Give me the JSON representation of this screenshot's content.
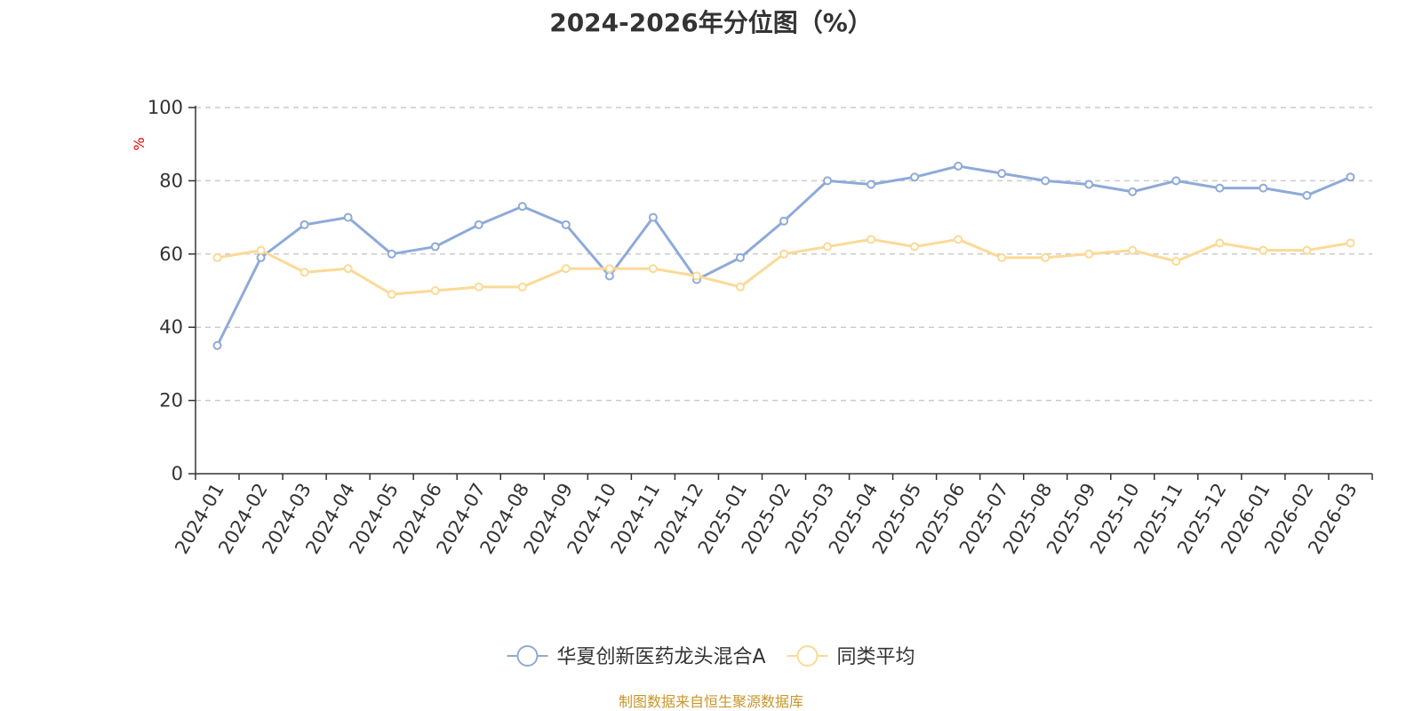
{
  "title": "2024-2026年分位图（%）",
  "source_note": "制图数据来自恒生聚源数据库",
  "chart_data": {
    "type": "line",
    "title": "2024-2026年分位图（%）",
    "ylabel": "%",
    "xlabel": "",
    "ylim": [
      0,
      100
    ],
    "y_ticks": [
      0,
      20,
      40,
      60,
      80,
      100
    ],
    "grid": true,
    "legend_position": "bottom-center",
    "categories": [
      "2024-01",
      "2024-02",
      "2024-03",
      "2024-04",
      "2024-05",
      "2024-06",
      "2024-07",
      "2024-08",
      "2024-09",
      "2024-10",
      "2024-11",
      "2024-12",
      "2025-01",
      "2025-02",
      "2025-03",
      "2025-04",
      "2025-05",
      "2025-06",
      "2025-07",
      "2025-08",
      "2025-09",
      "2025-10",
      "2025-11",
      "2025-12",
      "2026-01",
      "2026-02",
      "2026-03"
    ],
    "series": [
      {
        "name": "华夏创新医药龙头混合A",
        "color": "#8eaad8",
        "values": [
          35,
          59,
          68,
          70,
          60,
          62,
          68,
          73,
          68,
          54,
          70,
          53,
          59,
          69,
          80,
          79,
          81,
          84,
          82,
          80,
          79,
          77,
          80,
          78,
          78,
          76,
          81
        ]
      },
      {
        "name": "同类平均",
        "color": "#fcd996",
        "values": [
          59,
          61,
          55,
          56,
          49,
          50,
          51,
          51,
          56,
          56,
          56,
          54,
          51,
          60,
          62,
          64,
          62,
          64,
          59,
          59,
          60,
          61,
          58,
          63,
          61,
          61,
          63
        ]
      }
    ]
  }
}
